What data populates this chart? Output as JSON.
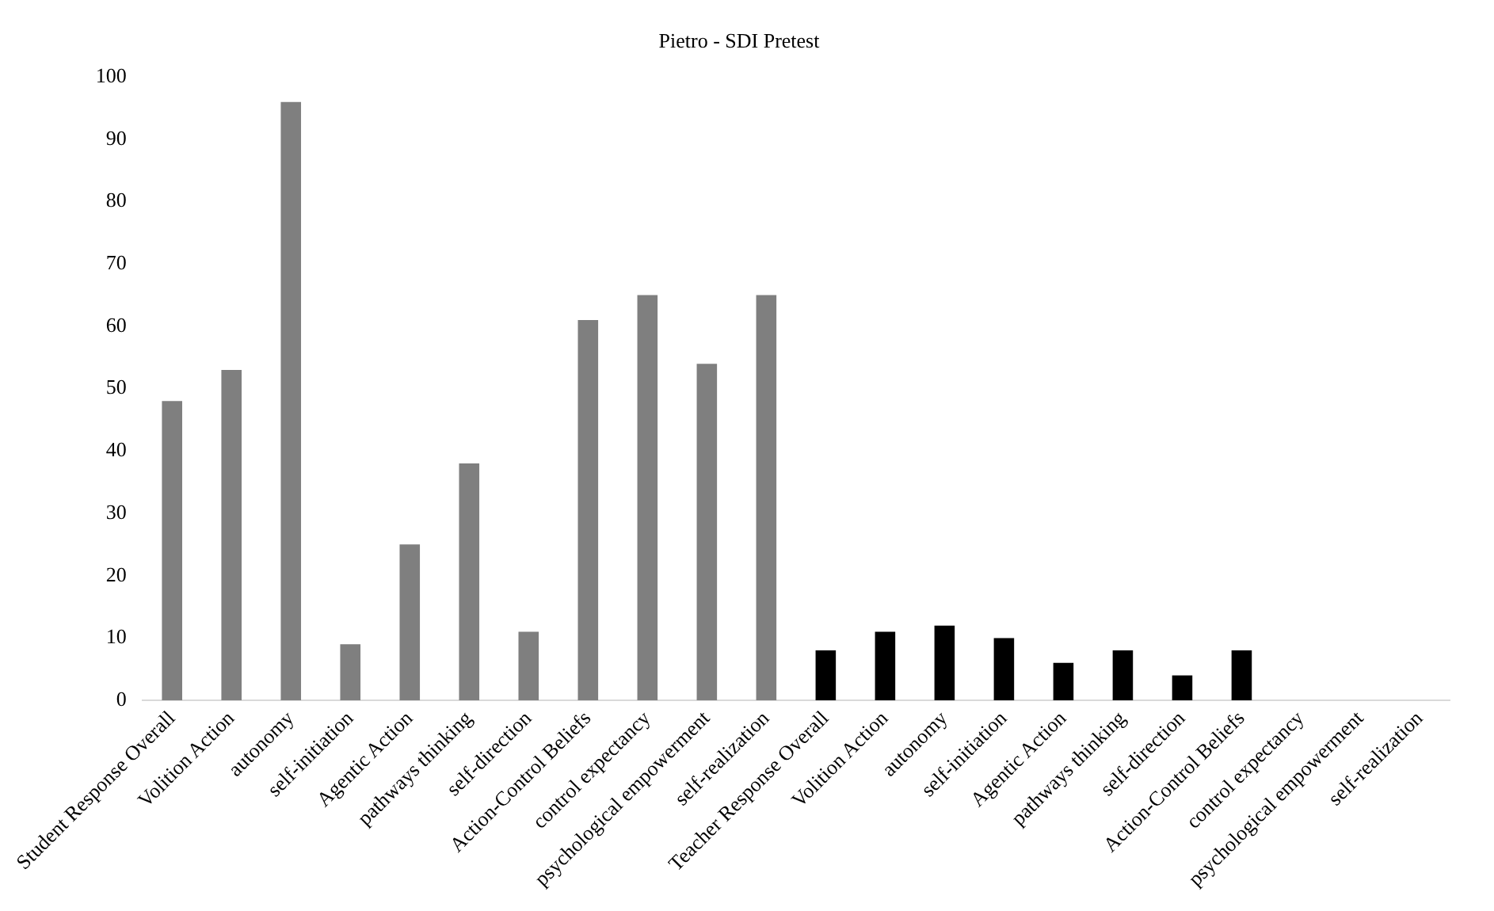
{
  "chart_data": {
    "type": "bar",
    "title": "Pietro - SDI Pretest",
    "categories": [
      "Student Response Overall",
      "Volition Action",
      "autonomy",
      "self-initiation",
      "Agentic Action",
      "pathways thinking",
      "self-direction",
      "Action-Control Beliefs",
      "control expectancy",
      "psychological empowerment",
      "self-realization",
      "Teacher Response Overall",
      "Volition Action",
      "autonomy",
      "self-initiation",
      "Agentic Action",
      "pathways thinking",
      "self-direction",
      "Action-Control Beliefs",
      "control expectancy",
      "psychological empowerment",
      "self-realization"
    ],
    "values": [
      48,
      53,
      96,
      9,
      25,
      38,
      11,
      61,
      65,
      54,
      65,
      8,
      11,
      12,
      10,
      6,
      8,
      4,
      8,
      0,
      0,
      0
    ],
    "colors": [
      "#7f7f7f",
      "#7f7f7f",
      "#7f7f7f",
      "#7f7f7f",
      "#7f7f7f",
      "#7f7f7f",
      "#7f7f7f",
      "#7f7f7f",
      "#7f7f7f",
      "#7f7f7f",
      "#7f7f7f",
      "#000000",
      "#000000",
      "#000000",
      "#000000",
      "#000000",
      "#000000",
      "#000000",
      "#000000",
      "#000000",
      "#000000",
      "#000000"
    ],
    "ylim": [
      0,
      100
    ],
    "yticks": [
      0,
      10,
      20,
      30,
      40,
      50,
      60,
      70,
      80,
      90,
      100
    ],
    "grid": false,
    "legend": false
  }
}
